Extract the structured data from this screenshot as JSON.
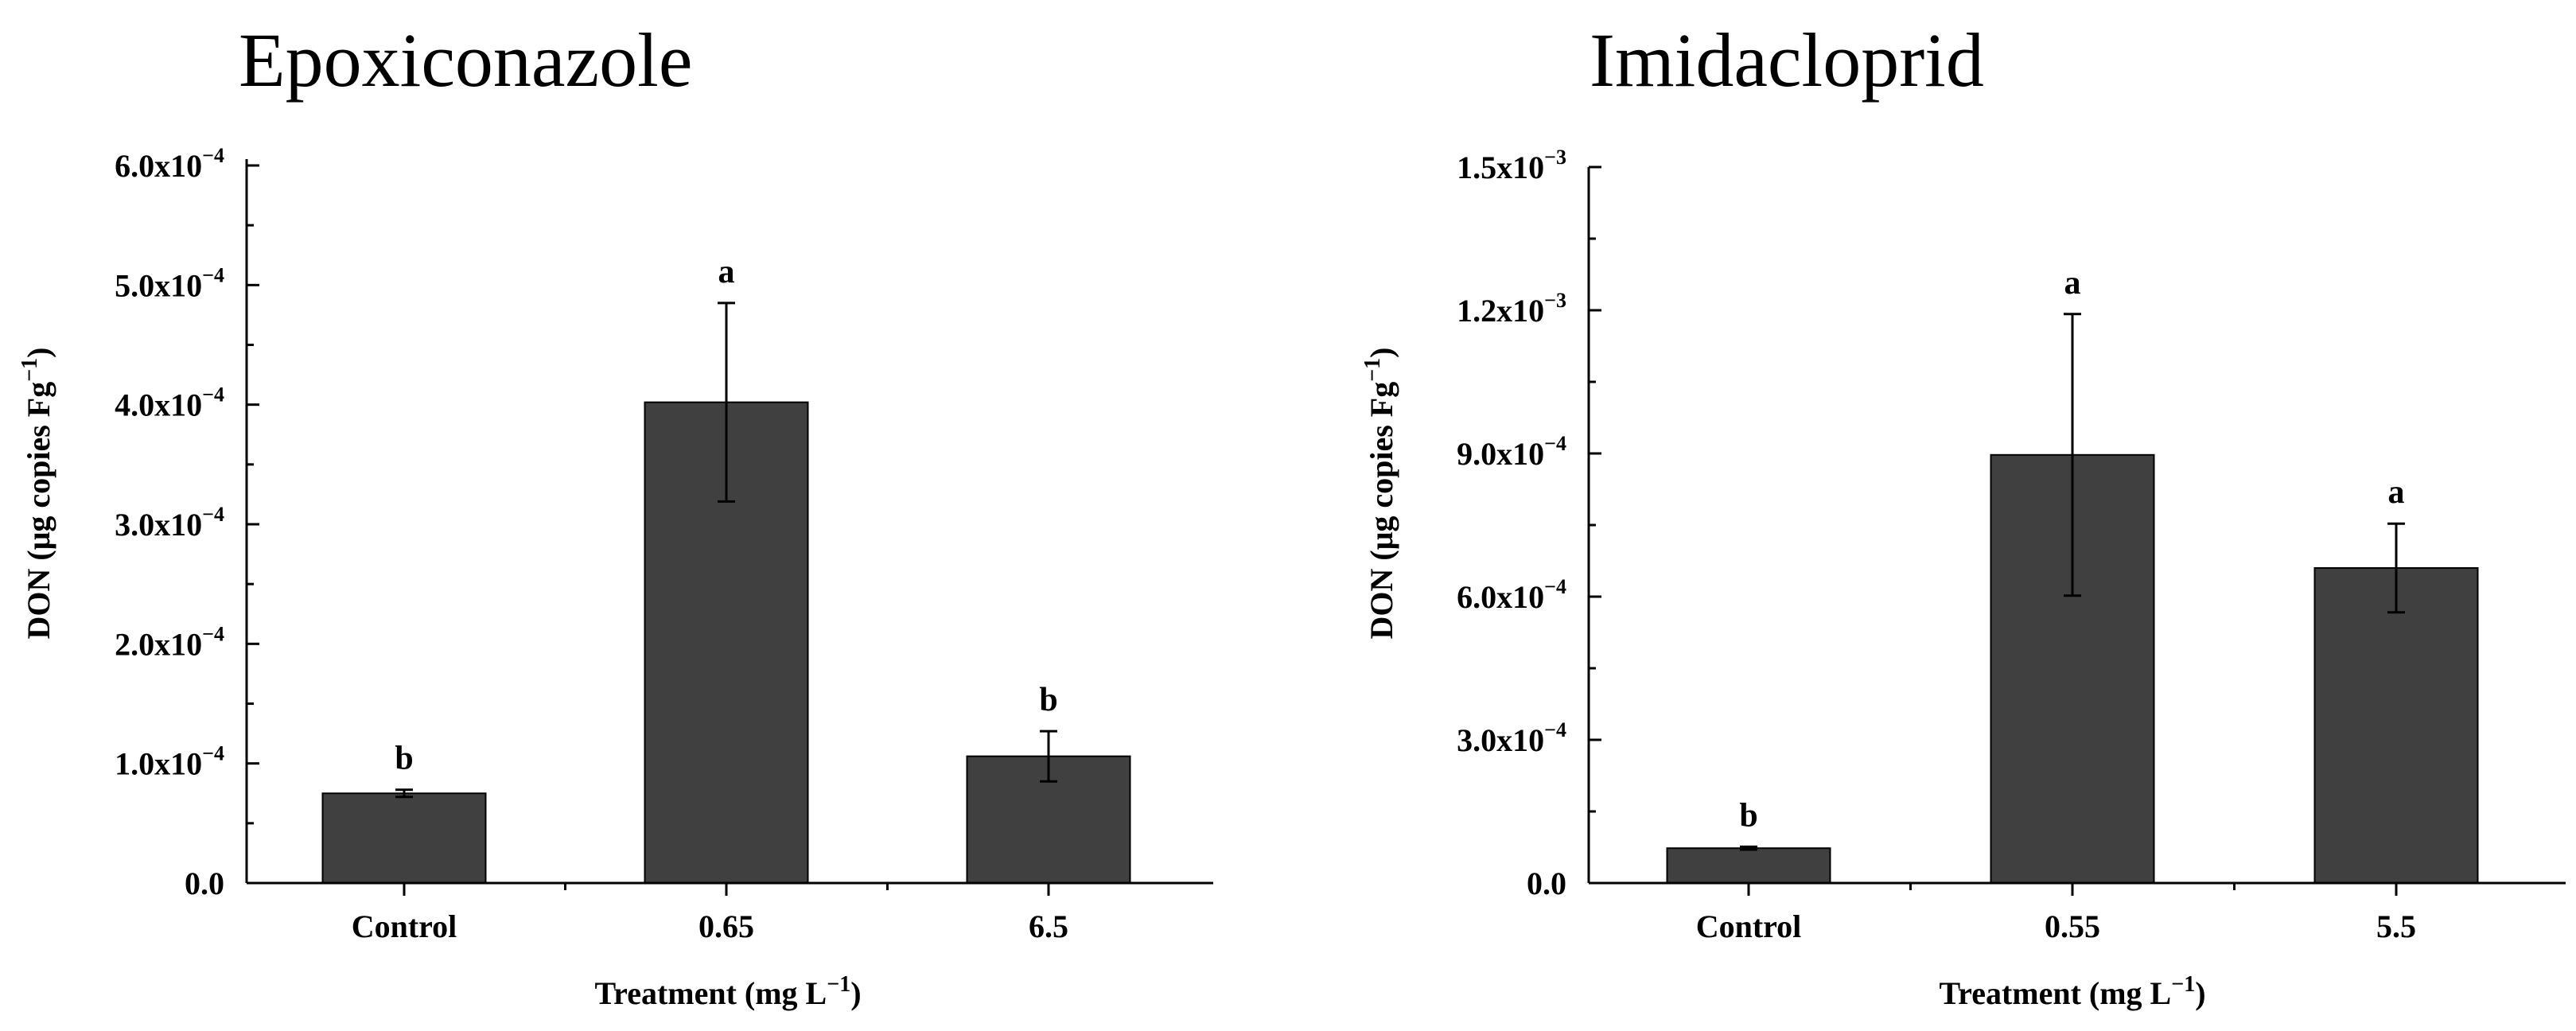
{
  "colors": {
    "bar": "#404040",
    "axis": "#000000"
  },
  "chart_data": [
    {
      "type": "bar",
      "title": "Epoxiconazole",
      "xlabel": "Treatment (mg L",
      "xlabel_sup": "−1",
      "xlabel_close": ")",
      "ylabel": "DON (μg copies Fg",
      "ylabel_sup": "−1",
      "ylabel_close": ")",
      "categories": [
        "Control",
        "0.65",
        "6.5"
      ],
      "values": [
        7.5e-05,
        0.000402,
        0.000106
      ],
      "errors": [
        3e-06,
        8.3e-05,
        2.1e-05
      ],
      "labels": [
        "b",
        "a",
        "b"
      ],
      "ylim": [
        0,
        0.0006
      ],
      "yticks": [
        0,
        0.0001,
        0.0002,
        0.0003,
        0.0004,
        0.0005,
        0.0006
      ],
      "ytick_labels": [
        {
          "base": "0.0",
          "exp": ""
        },
        {
          "base": "1.0x10",
          "exp": "−4"
        },
        {
          "base": "2.0x10",
          "exp": "−4"
        },
        {
          "base": "3.0x10",
          "exp": "−4"
        },
        {
          "base": "4.0x10",
          "exp": "−4"
        },
        {
          "base": "5.0x10",
          "exp": "−4"
        },
        {
          "base": "6.0x10",
          "exp": "−4"
        }
      ]
    },
    {
      "type": "bar",
      "title": "Imidacloprid",
      "xlabel": "Treatment (mg L",
      "xlabel_sup": "−1",
      "xlabel_close": ")",
      "ylabel": "DON (μg copies Fg",
      "ylabel_sup": "−1",
      "ylabel_close": ")",
      "categories": [
        "Control",
        "0.55",
        "5.5"
      ],
      "values": [
        7.3e-05,
        0.000897,
        0.00066
      ],
      "errors": [
        3e-06,
        0.000295,
        9.3e-05
      ],
      "labels": [
        "b",
        "a",
        "a"
      ],
      "ylim": [
        0,
        0.0015
      ],
      "yticks": [
        0,
        0.0003,
        0.0006,
        0.0009,
        0.0012,
        0.0015
      ],
      "ytick_labels": [
        {
          "base": "0.0",
          "exp": ""
        },
        {
          "base": "3.0x10",
          "exp": "−4"
        },
        {
          "base": "6.0x10",
          "exp": "−4"
        },
        {
          "base": "9.0x10",
          "exp": "−4"
        },
        {
          "base": "1.2x10",
          "exp": "−3"
        },
        {
          "base": "1.5x10",
          "exp": "−3"
        }
      ]
    }
  ]
}
